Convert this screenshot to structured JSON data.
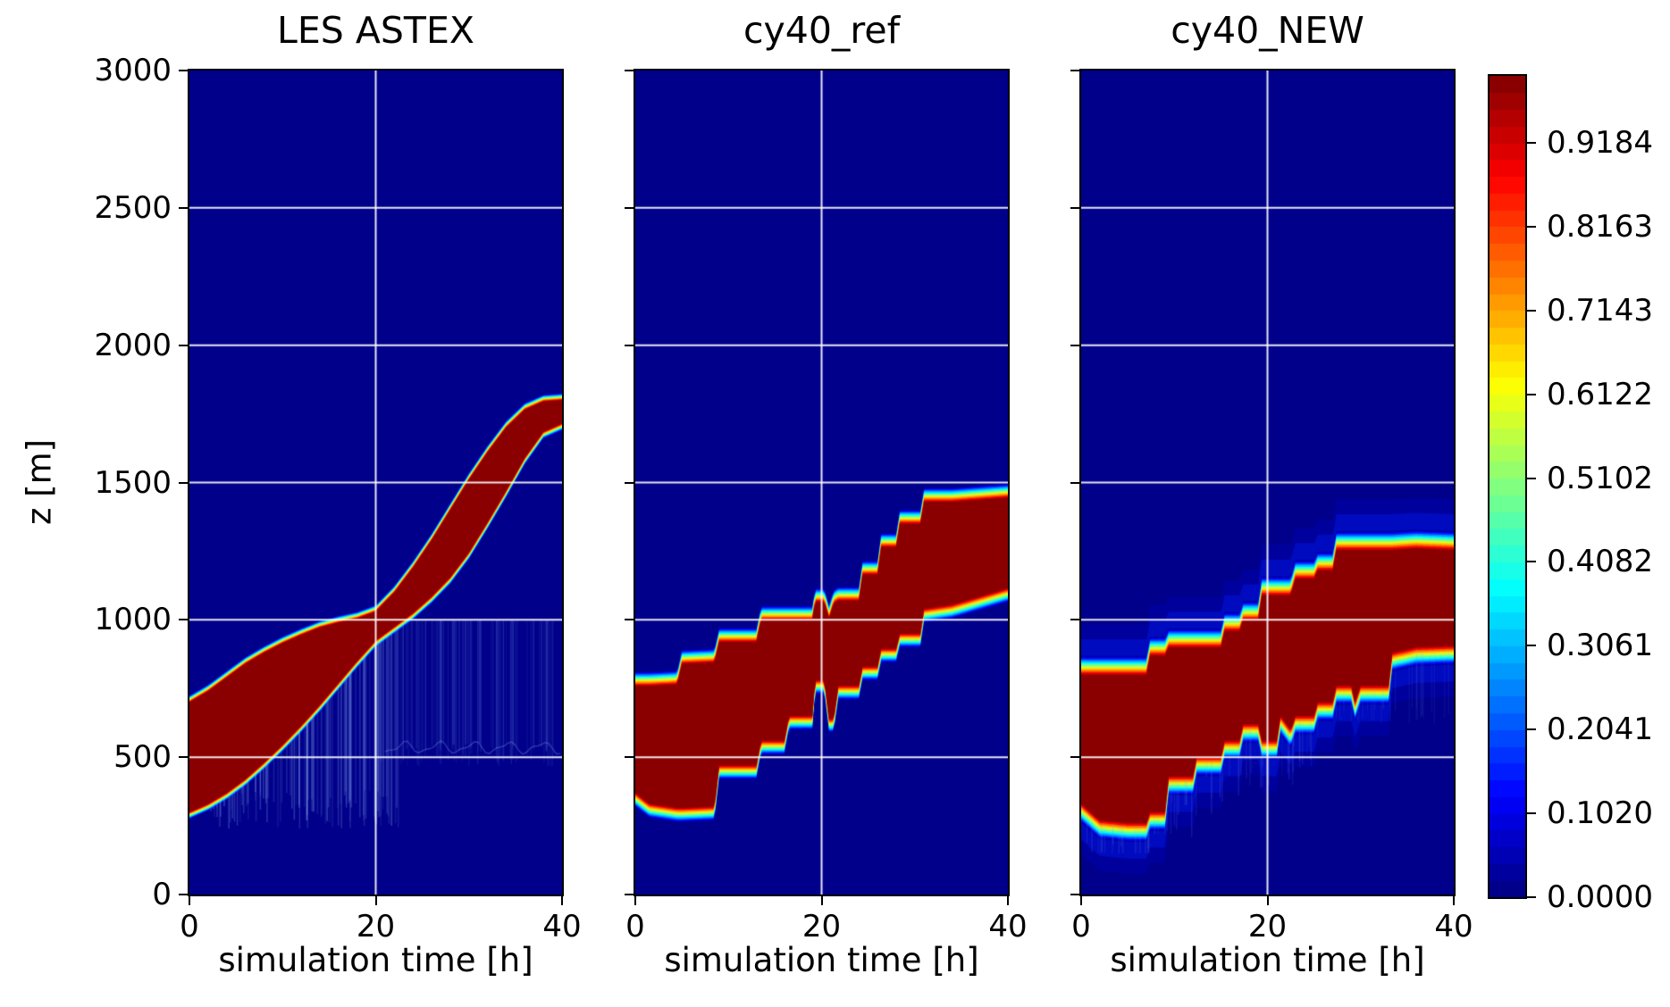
{
  "chart_data": {
    "type": "heatmap",
    "colormap": "jet",
    "levels": 49,
    "grid": true,
    "xlabel": "simulation time [h]",
    "ylabel": "z [m]",
    "xlim": [
      0,
      40
    ],
    "ylim": [
      0,
      3000
    ],
    "xticks": [
      0,
      20,
      40
    ],
    "yticks": [
      0,
      500,
      1000,
      1500,
      2000,
      2500,
      3000
    ],
    "colorbar": {
      "vmin": 0.0,
      "vmax": 1.0,
      "tick_values": [
        0.0,
        0.102,
        0.2041,
        0.3061,
        0.4082,
        0.5102,
        0.6122,
        0.7143,
        0.8163,
        0.9184
      ],
      "tick_labels": [
        "0.0000",
        "0.1020",
        "0.2041",
        "0.3061",
        "0.4082",
        "0.5102",
        "0.6122",
        "0.7143",
        "0.8163",
        "0.9184"
      ]
    },
    "panels": [
      {
        "title": "LES ASTEX",
        "t": [
          0,
          2,
          4,
          6,
          8,
          10,
          12,
          14,
          16,
          18,
          20,
          22,
          24,
          26,
          28,
          30,
          32,
          34,
          36,
          38,
          40
        ],
        "cloud_base_m": [
          300,
          330,
          370,
          420,
          480,
          545,
          615,
          690,
          770,
          850,
          925,
          975,
          1025,
          1085,
          1155,
          1245,
          1355,
          1470,
          1590,
          1685,
          1715
        ],
        "cloud_top_m": [
          700,
          740,
          790,
          840,
          880,
          915,
          945,
          972,
          990,
          1005,
          1030,
          1100,
          1190,
          1290,
          1400,
          1510,
          1610,
          1700,
          1765,
          1795,
          1800
        ]
      },
      {
        "title": "cy40_ref",
        "t": [
          0,
          1.5,
          4.5,
          5,
          8.5,
          9,
          13,
          13.5,
          16,
          16.5,
          19,
          19.3,
          20.3,
          20.8,
          21.3,
          21.8,
          24,
          24.4,
          26,
          26.4,
          28,
          28.4,
          30.6,
          31,
          34,
          40
        ],
        "cloud_base_m": [
          370,
          330,
          315,
          315,
          320,
          470,
          470,
          560,
          560,
          650,
          650,
          780,
          780,
          640,
          640,
          760,
          760,
          830,
          830,
          895,
          895,
          950,
          950,
          1040,
          1055,
          1115
        ],
        "cloud_top_m": [
          760,
          760,
          765,
          840,
          845,
          920,
          920,
          1000,
          1000,
          1000,
          1000,
          1065,
          1065,
          1005,
          1060,
          1070,
          1070,
          1165,
          1165,
          1265,
          1265,
          1350,
          1350,
          1430,
          1430,
          1445
        ]
      },
      {
        "title": "cy40_NEW",
        "t": [
          0,
          2,
          5,
          7,
          7.4,
          9,
          9.4,
          12,
          12.4,
          15,
          15.4,
          17,
          17.4,
          19,
          19.4,
          21,
          21.4,
          22.5,
          23,
          25,
          25.4,
          27,
          27.4,
          29,
          29.4,
          30,
          33,
          33.4,
          36,
          40
        ],
        "cloud_base_m": [
          330,
          270,
          260,
          260,
          300,
          300,
          430,
          430,
          500,
          500,
          560,
          560,
          620,
          620,
          560,
          560,
          650,
          600,
          650,
          650,
          700,
          700,
          760,
          760,
          700,
          760,
          760,
          880,
          900,
          905
        ],
        "cloud_top_m": [
          800,
          800,
          800,
          800,
          870,
          870,
          900,
          900,
          900,
          900,
          960,
          960,
          1000,
          1000,
          1090,
          1090,
          1090,
          1090,
          1150,
          1150,
          1180,
          1180,
          1255,
          1255,
          1255,
          1255,
          1255,
          1255,
          1260,
          1255
        ]
      }
    ]
  }
}
